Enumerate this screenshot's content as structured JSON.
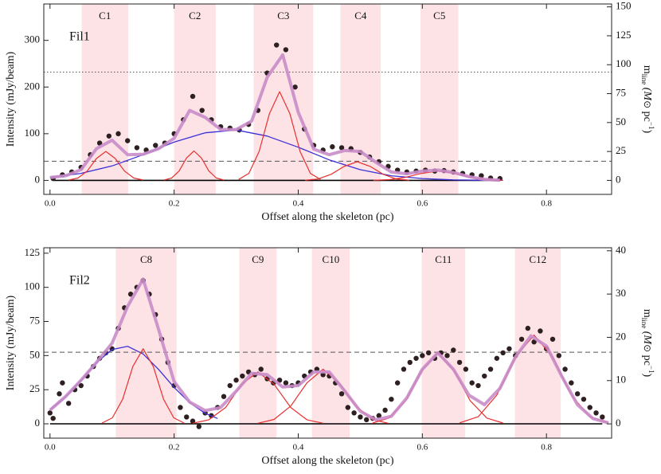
{
  "chart_data": [
    {
      "type": "scatter",
      "label": "Fil1",
      "xlabel": "Offset along the skeleton (pc)",
      "ylabel": "Intensity (mJy/beam)",
      "y2label": [
        "m",
        "line",
        " (M",
        "⊙",
        " pc",
        "−1",
        ")"
      ],
      "xlim": [
        -0.01,
        0.905
      ],
      "ylim": [
        -30,
        378
      ],
      "y2lim": [
        -12.1,
        152.5
      ],
      "xticks": [
        {
          "value": 0,
          "label": "0.0"
        },
        0.2,
        0.4,
        0.6,
        0.8
      ],
      "yticks": [
        0,
        100,
        200,
        300
      ],
      "y2ticks": [
        0,
        25,
        50,
        75,
        100,
        125,
        150
      ],
      "region_color": "#fde3e6",
      "regions": [
        {
          "label": "C1",
          "range": [
            0.051,
            0.126
          ]
        },
        {
          "label": "C2",
          "range": [
            0.2,
            0.267
          ]
        },
        {
          "label": "C3",
          "range": [
            0.328,
            0.424
          ]
        },
        {
          "label": "C4",
          "range": [
            0.468,
            0.533
          ]
        },
        {
          "label": "C5",
          "range": [
            0.597,
            0.658
          ]
        }
      ],
      "hlines": [
        {
          "value": 41,
          "style": "dashed"
        },
        {
          "value": 232,
          "style": "dotted"
        }
      ],
      "points": {
        "color": "#2e2020",
        "x": [
          0.005,
          0.02,
          0.035,
          0.05,
          0.065,
          0.08,
          0.095,
          0.11,
          0.125,
          0.14,
          0.155,
          0.17,
          0.185,
          0.2,
          0.215,
          0.23,
          0.245,
          0.26,
          0.275,
          0.29,
          0.305,
          0.32,
          0.335,
          0.35,
          0.365,
          0.38,
          0.395,
          0.41,
          0.425,
          0.44,
          0.455,
          0.47,
          0.485,
          0.5,
          0.515,
          0.53,
          0.545,
          0.56,
          0.575,
          0.59,
          0.605,
          0.62,
          0.635,
          0.65,
          0.665,
          0.68,
          0.695,
          0.71,
          0.725
        ],
        "values": [
          4,
          12,
          18,
          28,
          55,
          80,
          95,
          100,
          85,
          70,
          65,
          75,
          80,
          100,
          130,
          180,
          150,
          130,
          115,
          112,
          108,
          120,
          150,
          230,
          290,
          280,
          200,
          110,
          75,
          65,
          72,
          70,
          68,
          60,
          50,
          40,
          30,
          22,
          18,
          20,
          22,
          20,
          21,
          18,
          15,
          12,
          10,
          5,
          4
        ]
      },
      "lines": [
        {
          "color": "#3b30d8",
          "width": 1.3,
          "x": [
            0,
            0.05,
            0.1,
            0.15,
            0.2,
            0.25,
            0.3,
            0.35,
            0.4,
            0.45,
            0.5,
            0.55,
            0.6,
            0.65,
            0.7,
            0.73
          ],
          "values": [
            6,
            15,
            31,
            55,
            82,
            102,
            108,
            95,
            71,
            44,
            23,
            10,
            4,
            1,
            0.3,
            0.1
          ]
        },
        {
          "color": "#e8302e",
          "width": 1.2,
          "x": [
            0.03,
            0.045,
            0.06,
            0.075,
            0.09,
            0.105,
            0.12,
            0.135,
            0.15
          ],
          "values": [
            0.7,
            5,
            20,
            47,
            62,
            47,
            20,
            5,
            0.7
          ]
        },
        {
          "color": "#e8302e",
          "width": 1.2,
          "x": [
            0.184,
            0.196,
            0.208,
            0.22,
            0.232,
            0.244,
            0.256,
            0.268,
            0.28
          ],
          "values": [
            0.7,
            5,
            20,
            48,
            63,
            48,
            20,
            5,
            0.7
          ]
        },
        {
          "color": "#e8302e",
          "width": 1.2,
          "x": [
            0.304,
            0.3205,
            0.337,
            0.3535,
            0.37,
            0.3865,
            0.403,
            0.4195,
            0.436
          ],
          "values": [
            2,
            15,
            62,
            143,
            190,
            143,
            62,
            15,
            2
          ]
        },
        {
          "color": "#e8302e",
          "width": 1.2,
          "x": [
            0.411,
            0.432,
            0.453,
            0.474,
            0.495,
            0.516,
            0.537,
            0.558,
            0.579
          ],
          "values": [
            0.4,
            3,
            13,
            30,
            40,
            30,
            13,
            3,
            0.4
          ]
        },
        {
          "color": "#e8302e",
          "width": 1.2,
          "x": [
            0.521,
            0.547,
            0.573,
            0.599,
            0.625,
            0.651,
            0.677,
            0.703,
            0.729
          ],
          "values": [
            0.2,
            1.6,
            6.5,
            15,
            20,
            15,
            6.5,
            1.6,
            0.2
          ]
        },
        {
          "color": "#c98cc9",
          "width": 4,
          "x": [
            0,
            0.025,
            0.05,
            0.075,
            0.1,
            0.125,
            0.15,
            0.175,
            0.2,
            0.225,
            0.25,
            0.275,
            0.3,
            0.325,
            0.35,
            0.375,
            0.4,
            0.425,
            0.45,
            0.475,
            0.5,
            0.525,
            0.55,
            0.575,
            0.6,
            0.625,
            0.65,
            0.675,
            0.7,
            0.725
          ],
          "values": [
            6,
            10,
            23,
            68,
            86,
            55,
            56,
            68,
            90,
            150,
            135,
            109,
            109,
            127,
            221,
            269,
            146,
            67,
            55,
            64,
            62,
            39,
            18,
            14,
            20,
            22,
            17,
            8,
            2.3,
            0.4
          ]
        }
      ]
    },
    {
      "type": "scatter",
      "label": "Fil2",
      "xlabel": "Offset along the skeleton (pc)",
      "ylabel": "Intensity (mJy/beam)",
      "y2label": [
        "m",
        "line",
        " (M",
        "⊙",
        " pc",
        "−1",
        ")"
      ],
      "xlim": [
        -0.01,
        0.905
      ],
      "ylim": [
        -10.5,
        129
      ],
      "y2lim": [
        -3.3,
        40.7
      ],
      "xticks": [
        {
          "value": 0,
          "label": "0.0"
        },
        0.2,
        0.4,
        0.6,
        0.8
      ],
      "yticks": [
        0,
        25,
        50,
        75,
        100,
        125
      ],
      "y2ticks": [
        0,
        10,
        20,
        30,
        40
      ],
      "region_color": "#fde3e6",
      "regions": [
        {
          "label": "C8",
          "range": [
            0.106,
            0.204
          ]
        },
        {
          "label": "C9",
          "range": [
            0.305,
            0.365
          ]
        },
        {
          "label": "C10",
          "range": [
            0.422,
            0.483
          ]
        },
        {
          "label": "C11",
          "range": [
            0.599,
            0.669
          ]
        },
        {
          "label": "C12",
          "range": [
            0.749,
            0.823
          ]
        }
      ],
      "hlines": [
        {
          "value": 52.5,
          "style": "dashed"
        }
      ],
      "points": {
        "color": "#2e2020",
        "x": [
          0,
          0.005,
          0.015,
          0.02,
          0.03,
          0.04,
          0.05,
          0.06,
          0.07,
          0.08,
          0.09,
          0.1,
          0.11,
          0.12,
          0.13,
          0.14,
          0.15,
          0.16,
          0.17,
          0.18,
          0.19,
          0.2,
          0.21,
          0.22,
          0.23,
          0.24,
          0.25,
          0.26,
          0.27,
          0.28,
          0.29,
          0.3,
          0.31,
          0.32,
          0.33,
          0.34,
          0.35,
          0.36,
          0.37,
          0.38,
          0.39,
          0.4,
          0.41,
          0.42,
          0.43,
          0.44,
          0.45,
          0.46,
          0.47,
          0.48,
          0.49,
          0.5,
          0.51,
          0.52,
          0.53,
          0.54,
          0.55,
          0.56,
          0.57,
          0.58,
          0.59,
          0.6,
          0.61,
          0.62,
          0.63,
          0.64,
          0.65,
          0.66,
          0.67,
          0.68,
          0.69,
          0.7,
          0.71,
          0.72,
          0.73,
          0.74,
          0.75,
          0.76,
          0.77,
          0.78,
          0.79,
          0.8,
          0.81,
          0.82,
          0.83,
          0.84,
          0.85,
          0.86,
          0.87,
          0.88,
          0.89
        ],
        "values": [
          8,
          4,
          22,
          30,
          15,
          25,
          28,
          35,
          42,
          48,
          52,
          55,
          70,
          85,
          95,
          100,
          105,
          95,
          80,
          62,
          45,
          28,
          12,
          5,
          2,
          -2,
          8,
          6,
          12,
          20,
          28,
          32,
          35,
          38,
          36,
          40,
          33,
          30,
          32,
          30,
          28,
          30,
          35,
          38,
          40,
          36,
          35,
          30,
          22,
          12,
          8,
          5,
          3,
          4,
          6,
          10,
          18,
          30,
          40,
          45,
          48,
          50,
          52,
          48,
          52,
          50,
          54,
          45,
          40,
          30,
          28,
          35,
          40,
          48,
          52,
          55,
          50,
          62,
          70,
          60,
          68,
          55,
          62,
          50,
          40,
          30,
          22,
          18,
          12,
          8,
          5
        ]
      },
      "lines": [
        {
          "color": "#3b30d8",
          "width": 1.3,
          "x": [
            0,
            0.025,
            0.05,
            0.075,
            0.1,
            0.125,
            0.15,
            0.175,
            0.2,
            0.225,
            0.25,
            0.27
          ],
          "values": [
            10.4,
            19.6,
            31.9,
            44.9,
            54.4,
            56.8,
            51.2,
            39.8,
            26.7,
            15.5,
            7.7,
            3.9
          ]
        },
        {
          "color": "#e8302e",
          "width": 1.2,
          "x": [
            0.084,
            0.1005,
            0.117,
            0.1335,
            0.15,
            0.1665,
            0.183,
            0.1995,
            0.216
          ],
          "values": [
            0.6,
            4.4,
            18,
            42,
            55,
            42,
            18,
            4.4,
            0.6
          ]
        },
        {
          "color": "#e8302e",
          "width": 1.2,
          "x": [
            0.23,
            0.256,
            0.283,
            0.309,
            0.335,
            0.361,
            0.388,
            0.414,
            0.44
          ],
          "values": [
            0.4,
            3,
            12,
            29,
            38,
            29,
            12,
            3,
            0.4
          ]
        },
        {
          "color": "#e8302e",
          "width": 1.2,
          "x": [
            0.335,
            0.361,
            0.388,
            0.414,
            0.44,
            0.466,
            0.493,
            0.519,
            0.545
          ],
          "values": [
            0.4,
            3.2,
            13,
            30,
            40,
            30,
            13,
            3.2,
            0.4
          ]
        },
        {
          "color": "#e8302e",
          "width": 1.2,
          "x": [
            0.52,
            0.546,
            0.573,
            0.599,
            0.625,
            0.651,
            0.677,
            0.704,
            0.73
          ],
          "values": [
            0.6,
            4.2,
            17,
            39,
            52,
            39,
            17,
            4.2,
            0.6
          ]
        },
        {
          "color": "#e8302e",
          "width": 1.2,
          "x": [
            0.66,
            0.69,
            0.72,
            0.75,
            0.78,
            0.81,
            0.84,
            0.87,
            0.9
          ],
          "values": [
            0.7,
            5.2,
            21,
            49,
            65,
            49,
            21,
            5.2,
            0.7
          ]
        },
        {
          "color": "#c98cc9",
          "width": 4,
          "x": [
            0,
            0.025,
            0.05,
            0.075,
            0.1,
            0.125,
            0.15,
            0.175,
            0.2,
            0.225,
            0.25,
            0.275,
            0.3,
            0.325,
            0.35,
            0.375,
            0.4,
            0.425,
            0.45,
            0.475,
            0.5,
            0.525,
            0.55,
            0.575,
            0.6,
            0.625,
            0.65,
            0.675,
            0.7,
            0.725,
            0.75,
            0.775,
            0.8,
            0.825,
            0.85,
            0.875,
            0.9
          ],
          "values": [
            10,
            20,
            32,
            45,
            59,
            86,
            106,
            69,
            31,
            16,
            9.7,
            12,
            24,
            37,
            36,
            27,
            28,
            38,
            38,
            24,
            9.2,
            3,
            5.5,
            19,
            40,
            52,
            40,
            21,
            14,
            26,
            49,
            64.5,
            57,
            34.5,
            14,
            3.8,
            0.7
          ]
        }
      ]
    }
  ]
}
